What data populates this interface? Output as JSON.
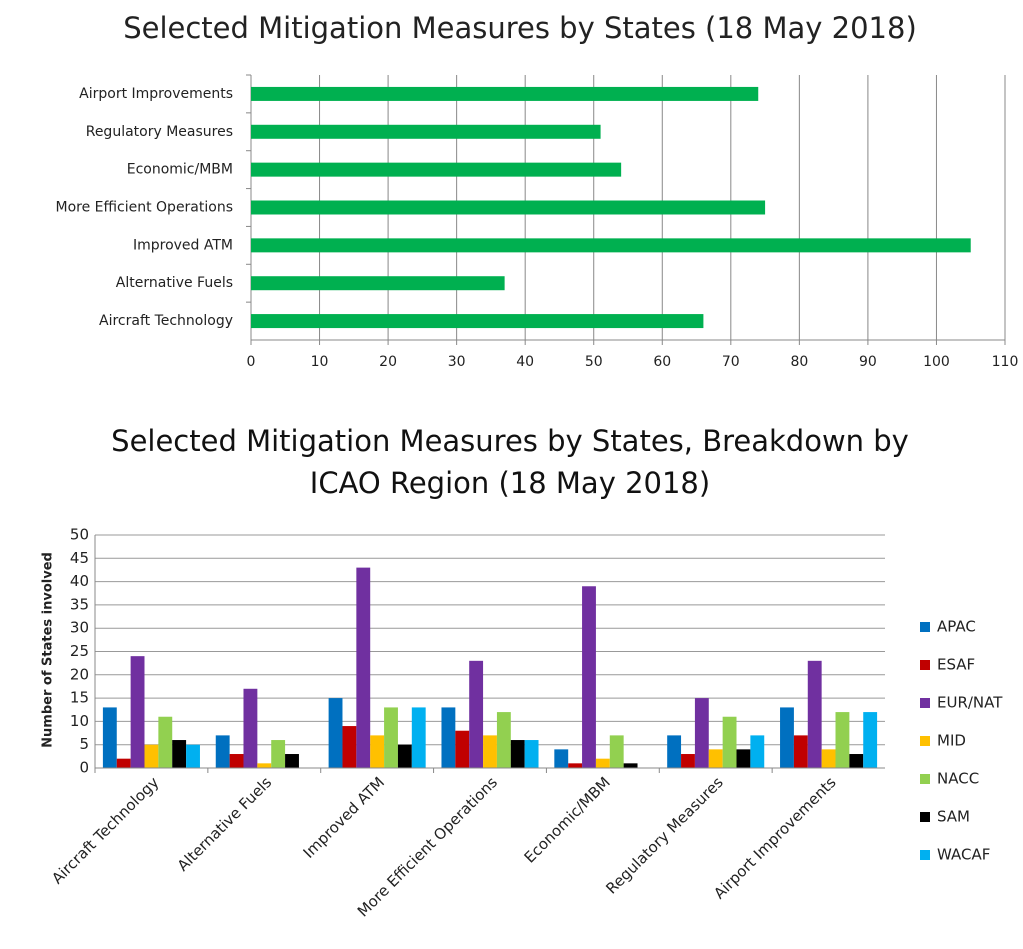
{
  "chart_data": [
    {
      "type": "hbar",
      "title": "Selected Mitigation Measures by States (18 May 2018)",
      "categories": [
        "Airport Improvements",
        "Regulatory Measures",
        "Economic/MBM",
        "More Efficient Operations",
        "Improved ATM",
        "Alternative Fuels",
        "Aircraft Technology"
      ],
      "values": [
        74,
        51,
        54,
        75,
        105,
        37,
        66
      ],
      "color": "#00b050",
      "xlim": [
        0,
        110
      ],
      "xticks": [
        0,
        10,
        20,
        30,
        40,
        50,
        60,
        70,
        80,
        90,
        100,
        110
      ],
      "grid": true
    },
    {
      "type": "grouped_bar",
      "title": "Selected Mitigation Measures by States, Breakdown by ICAO Region (18 May 2018)",
      "ylabel": "Number of States involved",
      "categories": [
        "Aircraft Technology",
        "Alternative Fuels",
        "Improved ATM",
        "More Efficient Operations",
        "Economic/MBM",
        "Regulatory Measures",
        "Airport Improvements"
      ],
      "series": [
        {
          "name": "APAC",
          "color": "#0070c0",
          "values": [
            13,
            7,
            15,
            13,
            4,
            7,
            13
          ]
        },
        {
          "name": "ESAF",
          "color": "#c00000",
          "values": [
            2,
            3,
            9,
            8,
            1,
            3,
            7
          ]
        },
        {
          "name": "EUR/NAT",
          "color": "#7030a0",
          "values": [
            24,
            17,
            43,
            23,
            39,
            15,
            23
          ]
        },
        {
          "name": "MID",
          "color": "#ffc000",
          "values": [
            5,
            1,
            7,
            7,
            2,
            4,
            4
          ]
        },
        {
          "name": "NACC",
          "color": "#92d050",
          "values": [
            11,
            6,
            13,
            12,
            7,
            11,
            12
          ]
        },
        {
          "name": "SAM",
          "color": "#000000",
          "values": [
            6,
            3,
            5,
            6,
            1,
            4,
            3
          ]
        },
        {
          "name": "WACAF",
          "color": "#00b0f0",
          "values": [
            5,
            0,
            13,
            6,
            0,
            7,
            12
          ]
        }
      ],
      "ylim": [
        0,
        50
      ],
      "yticks": [
        0,
        5,
        10,
        15,
        20,
        25,
        30,
        35,
        40,
        45,
        50
      ],
      "grid": true,
      "legend": "right"
    }
  ]
}
